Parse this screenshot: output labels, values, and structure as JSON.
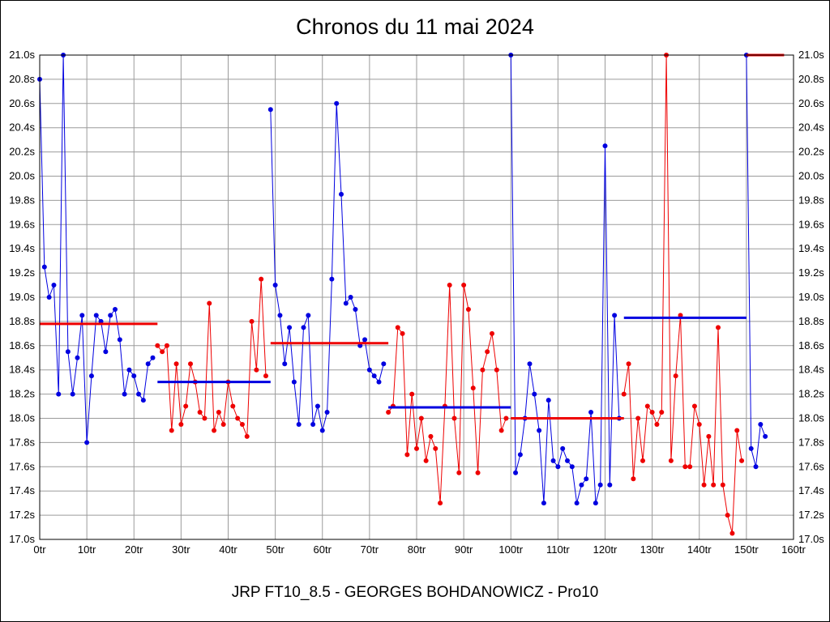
{
  "window": {
    "title": "Chronos du 11 mai 2024",
    "footer": "JRP FT10_8.5 - GEORGES BOHDANOWICZ - Pro10"
  },
  "chart_data": {
    "type": "line",
    "title": "Chronos du 11 mai 2024",
    "subtitle": "JRP FT10_8.5 - GEORGES BOHDANOWICZ - Pro10",
    "x_unit": "tr",
    "y_unit": "s",
    "xlim": [
      0,
      160
    ],
    "ylim": [
      17.0,
      21.0
    ],
    "grid": true,
    "legend": "none",
    "x_ticks": {
      "values": [
        0,
        10,
        20,
        30,
        40,
        50,
        60,
        70,
        80,
        90,
        100,
        110,
        120,
        130,
        140,
        150,
        160
      ],
      "labels": [
        "0tr",
        "10tr",
        "20tr",
        "30tr",
        "40tr",
        "50tr",
        "60tr",
        "70tr",
        "80tr",
        "90tr",
        "100tr",
        "110tr",
        "120tr",
        "130tr",
        "140tr",
        "150tr",
        "160tr"
      ]
    },
    "y_ticks": {
      "values": [
        21.0,
        20.8,
        20.6,
        20.4,
        20.2,
        20.0,
        19.8,
        19.6,
        19.4,
        19.2,
        19.0,
        18.8,
        18.6,
        18.4,
        18.2,
        18.0,
        17.8,
        17.6,
        17.4,
        17.2,
        17.0
      ],
      "labels": [
        "21.0s",
        "20.8s",
        "20.6s",
        "20.4s",
        "20.2s",
        "20.0s",
        "19.8s",
        "19.6s",
        "19.4s",
        "19.2s",
        "19.0s",
        "18.8s",
        "18.6s",
        "18.4s",
        "18.2s",
        "18.0s",
        "17.8s",
        "17.6s",
        "17.4s",
        "17.2s",
        "17.0s"
      ]
    },
    "colors": {
      "blue": "#0000e0",
      "red": "#ee0000",
      "grid": "#9b9b9b",
      "axis": "#000000",
      "background": "#ffffff"
    },
    "point_radius": 3,
    "segments": [
      {
        "name": "manche-1",
        "color": "blue",
        "laps": [
          20.8,
          19.25,
          19.0,
          19.1,
          18.2,
          21.0,
          18.55,
          18.2,
          18.5,
          18.85,
          17.8,
          18.35,
          18.85,
          18.8,
          18.55,
          18.85,
          18.9,
          18.65,
          18.2,
          18.4,
          18.35,
          18.2,
          18.15,
          18.45,
          18.5
        ]
      },
      {
        "name": "manche-2",
        "color": "red",
        "laps": [
          18.6,
          18.55,
          18.6,
          17.9,
          18.45,
          17.95,
          18.1,
          18.45,
          18.3,
          18.05,
          18.0,
          18.95,
          17.9,
          18.05,
          17.95,
          18.3,
          18.1,
          18.0,
          17.95,
          17.85,
          18.8,
          18.4,
          19.15,
          18.35
        ]
      },
      {
        "name": "manche-3",
        "color": "blue",
        "laps": [
          20.55,
          19.1,
          18.85,
          18.45,
          18.75,
          18.3,
          17.95,
          18.75,
          18.85,
          17.95,
          18.1,
          17.9,
          18.05,
          19.15,
          20.6,
          19.85,
          18.95,
          19.0,
          18.9,
          18.6,
          18.65,
          18.4,
          18.35,
          18.3,
          18.45
        ]
      },
      {
        "name": "manche-4",
        "color": "red",
        "laps": [
          18.05,
          18.1,
          18.75,
          18.7,
          17.7,
          18.2,
          17.75,
          18.0,
          17.65,
          17.85,
          17.75,
          17.3,
          18.1,
          19.1,
          18.0,
          17.55,
          19.1,
          18.9,
          18.25,
          17.55,
          18.4,
          18.55,
          18.7,
          18.4,
          17.9,
          18.0
        ]
      },
      {
        "name": "manche-5",
        "color": "blue",
        "laps": [
          21.0,
          17.55,
          17.7,
          18.0,
          18.45,
          18.2,
          17.9,
          17.3,
          18.15,
          17.65,
          17.6,
          17.75,
          17.65,
          17.6,
          17.3,
          17.45,
          17.5,
          18.05,
          17.3,
          17.45,
          20.25,
          17.45,
          18.85,
          18.0
        ]
      },
      {
        "name": "manche-6",
        "color": "red",
        "laps": [
          18.2,
          18.45,
          17.5,
          18.0,
          17.65,
          18.1,
          18.05,
          17.95,
          18.05,
          21.0,
          17.65,
          18.35,
          18.85,
          17.6,
          17.6,
          18.1,
          17.95,
          17.45,
          17.85,
          17.45,
          18.75,
          17.45,
          17.2,
          17.05,
          17.9,
          17.65
        ]
      },
      {
        "name": "manche-7",
        "color": "blue",
        "laps": [
          21.0,
          17.75,
          17.6,
          17.95,
          17.85
        ]
      }
    ],
    "average_lines": [
      {
        "color": "red",
        "from_tr": 0,
        "to_tr": 25,
        "value": 18.78
      },
      {
        "color": "blue",
        "from_tr": 25,
        "to_tr": 49,
        "value": 18.3
      },
      {
        "color": "red",
        "from_tr": 49,
        "to_tr": 74,
        "value": 18.62
      },
      {
        "color": "blue",
        "from_tr": 74,
        "to_tr": 100,
        "value": 18.09
      },
      {
        "color": "red",
        "from_tr": 100,
        "to_tr": 124,
        "value": 18.0
      },
      {
        "color": "blue",
        "from_tr": 124,
        "to_tr": 150,
        "value": 18.83
      },
      {
        "color": "red",
        "from_tr": 150,
        "to_tr": 158,
        "value": 21.0
      }
    ]
  }
}
